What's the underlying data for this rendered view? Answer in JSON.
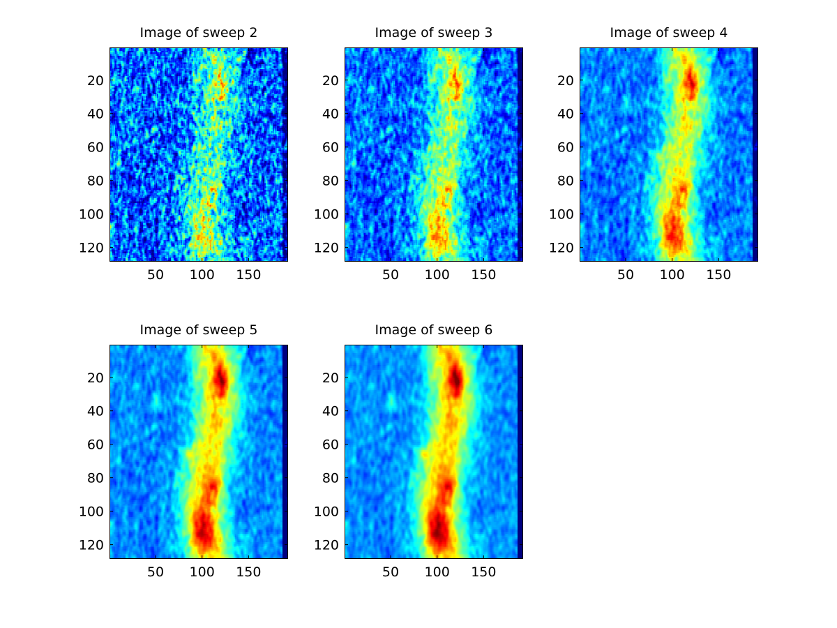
{
  "figure": {
    "background": "#ffffff",
    "colormap": "jet"
  },
  "chart_data": [
    {
      "type": "heatmap",
      "title": "Image of sweep  2",
      "sweep": 2,
      "xlim": [
        1,
        192
      ],
      "ylim": [
        1,
        128
      ],
      "y_reversed": true,
      "xticks": [
        50,
        100,
        150
      ],
      "yticks": [
        20,
        40,
        60,
        80,
        100,
        120
      ],
      "grid": false,
      "smoothness": 0.0,
      "noise": 0.9,
      "intensity": 0.55
    },
    {
      "type": "heatmap",
      "title": "Image of sweep  3",
      "sweep": 3,
      "xlim": [
        1,
        192
      ],
      "ylim": [
        1,
        128
      ],
      "y_reversed": true,
      "xticks": [
        50,
        100,
        150
      ],
      "yticks": [
        20,
        40,
        60,
        80,
        100,
        120
      ],
      "grid": false,
      "smoothness": 0.35,
      "noise": 0.65,
      "intensity": 0.7
    },
    {
      "type": "heatmap",
      "title": "Image of sweep  4",
      "sweep": 4,
      "xlim": [
        1,
        192
      ],
      "ylim": [
        1,
        128
      ],
      "y_reversed": true,
      "xticks": [
        50,
        100,
        150
      ],
      "yticks": [
        20,
        40,
        60,
        80,
        100,
        120
      ],
      "grid": false,
      "smoothness": 0.6,
      "noise": 0.45,
      "intensity": 0.85
    },
    {
      "type": "heatmap",
      "title": "Image of sweep  5",
      "sweep": 5,
      "xlim": [
        1,
        192
      ],
      "ylim": [
        1,
        128
      ],
      "y_reversed": true,
      "xticks": [
        50,
        100,
        150
      ],
      "yticks": [
        20,
        40,
        60,
        80,
        100,
        120
      ],
      "grid": false,
      "smoothness": 0.8,
      "noise": 0.35,
      "intensity": 0.95
    },
    {
      "type": "heatmap",
      "title": "Image of sweep  6",
      "sweep": 6,
      "xlim": [
        1,
        192
      ],
      "ylim": [
        1,
        128
      ],
      "y_reversed": true,
      "xticks": [
        50,
        100,
        150
      ],
      "yticks": [
        20,
        40,
        60,
        80,
        100,
        120
      ],
      "grid": false,
      "smoothness": 0.9,
      "noise": 0.3,
      "intensity": 1.0
    }
  ]
}
